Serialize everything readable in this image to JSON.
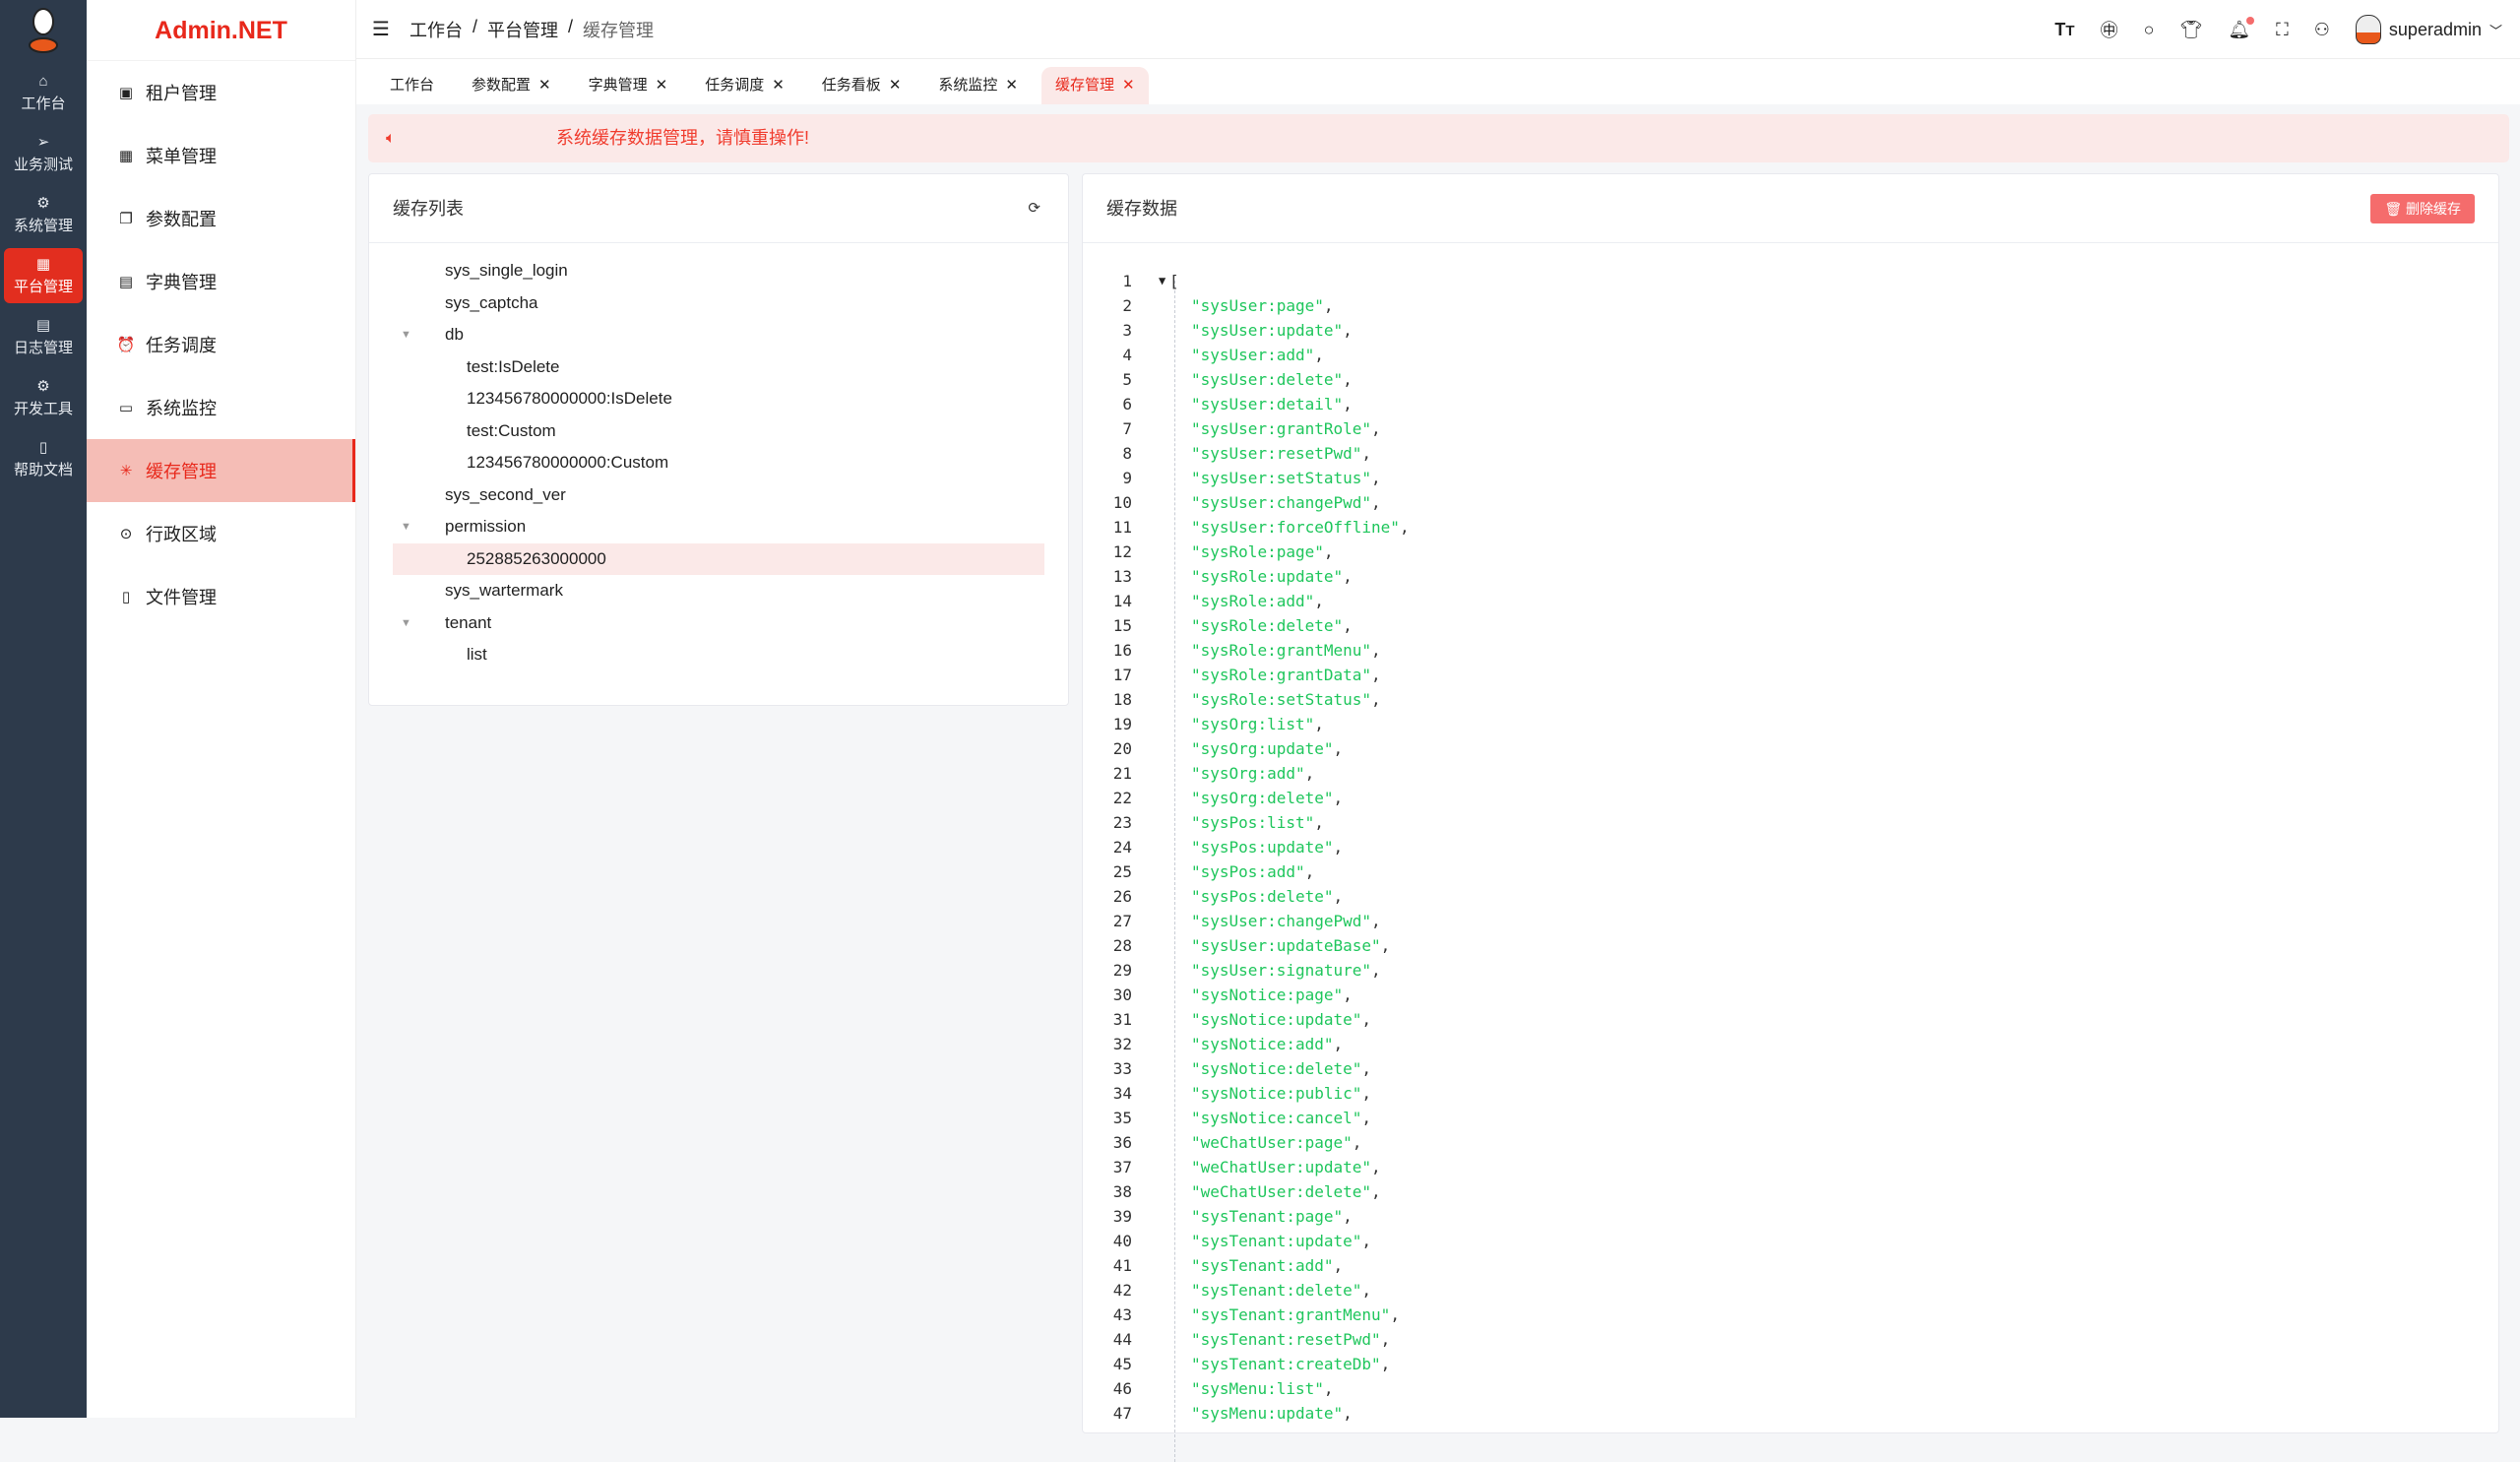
{
  "rail": {
    "items": [
      {
        "label": "工作台",
        "icon": "home-icon",
        "glyph": "⌂"
      },
      {
        "label": "业务测试",
        "icon": "send-icon",
        "glyph": "➢"
      },
      {
        "label": "系统管理",
        "icon": "gear-icon",
        "glyph": "⚙"
      },
      {
        "label": "平台管理",
        "icon": "grid-icon",
        "glyph": "▦",
        "active": true
      },
      {
        "label": "日志管理",
        "icon": "document-icon",
        "glyph": "▤"
      },
      {
        "label": "开发工具",
        "icon": "chip-icon",
        "glyph": "⚙"
      },
      {
        "label": "帮助文档",
        "icon": "book-icon",
        "glyph": "▯"
      }
    ]
  },
  "sidebar": {
    "brand": "Admin.NET",
    "items": [
      {
        "label": "租户管理",
        "icon": "building-icon",
        "glyph": "▣"
      },
      {
        "label": "菜单管理",
        "icon": "grid-icon",
        "glyph": "▦"
      },
      {
        "label": "参数配置",
        "icon": "copy-icon",
        "glyph": "❐"
      },
      {
        "label": "字典管理",
        "icon": "notebook-icon",
        "glyph": "▤"
      },
      {
        "label": "任务调度",
        "icon": "alarm-clock-icon",
        "glyph": "⏰"
      },
      {
        "label": "系统监控",
        "icon": "monitor-icon",
        "glyph": "▭"
      },
      {
        "label": "缓存管理",
        "icon": "loading-icon",
        "glyph": "✳",
        "active": true
      },
      {
        "label": "行政区域",
        "icon": "location-icon",
        "glyph": "⊙"
      },
      {
        "label": "文件管理",
        "icon": "file-icon",
        "glyph": "▯"
      }
    ]
  },
  "header": {
    "breadcrumb": [
      "工作台",
      "平台管理",
      "缓存管理"
    ],
    "username": "superadmin",
    "icons": [
      "font-size-icon",
      "language-icon",
      "search-icon",
      "theme-shirt-icon",
      "bell-icon",
      "fullscreen-icon",
      "user-icon"
    ]
  },
  "tabs": [
    {
      "label": "工作台",
      "closable": false
    },
    {
      "label": "参数配置",
      "closable": true
    },
    {
      "label": "字典管理",
      "closable": true
    },
    {
      "label": "任务调度",
      "closable": true
    },
    {
      "label": "任务看板",
      "closable": true
    },
    {
      "label": "系统监控",
      "closable": true
    },
    {
      "label": "缓存管理",
      "closable": true,
      "active": true
    }
  ],
  "alert": {
    "message": "系统缓存数据管理，请慎重操作!"
  },
  "cache_list": {
    "title": "缓存列表",
    "nodes": [
      {
        "label": "sys_single_login",
        "level": 1
      },
      {
        "label": "sys_captcha",
        "level": 1
      },
      {
        "label": "db",
        "level": 1,
        "expanded": true
      },
      {
        "label": "test:IsDelete",
        "level": 2
      },
      {
        "label": "123456780000000:IsDelete",
        "level": 2
      },
      {
        "label": "test:Custom",
        "level": 2
      },
      {
        "label": "123456780000000:Custom",
        "level": 2
      },
      {
        "label": "sys_second_ver",
        "level": 1
      },
      {
        "label": "permission",
        "level": 1,
        "expanded": true
      },
      {
        "label": "252885263000000",
        "level": 2,
        "selected": true
      },
      {
        "label": "sys_wartermark",
        "level": 1
      },
      {
        "label": "tenant",
        "level": 1,
        "expanded": true
      },
      {
        "label": "list",
        "level": 2
      }
    ]
  },
  "cache_data": {
    "title": "缓存数据",
    "delete_label": "删除缓存",
    "values": [
      "sysUser:page",
      "sysUser:update",
      "sysUser:add",
      "sysUser:delete",
      "sysUser:detail",
      "sysUser:grantRole",
      "sysUser:resetPwd",
      "sysUser:setStatus",
      "sysUser:changePwd",
      "sysUser:forceOffline",
      "sysRole:page",
      "sysRole:update",
      "sysRole:add",
      "sysRole:delete",
      "sysRole:grantMenu",
      "sysRole:grantData",
      "sysRole:setStatus",
      "sysOrg:list",
      "sysOrg:update",
      "sysOrg:add",
      "sysOrg:delete",
      "sysPos:list",
      "sysPos:update",
      "sysPos:add",
      "sysPos:delete",
      "sysUser:changePwd",
      "sysUser:updateBase",
      "sysUser:signature",
      "sysNotice:page",
      "sysNotice:update",
      "sysNotice:add",
      "sysNotice:delete",
      "sysNotice:public",
      "sysNotice:cancel",
      "weChatUser:page",
      "weChatUser:update",
      "weChatUser:delete",
      "sysTenant:page",
      "sysTenant:update",
      "sysTenant:add",
      "sysTenant:delete",
      "sysTenant:grantMenu",
      "sysTenant:resetPwd",
      "sysTenant:createDb",
      "sysMenu:list",
      "sysMenu:update"
    ]
  },
  "colors": {
    "accent": "#e8281b",
    "rail_bg": "#2d3a4b",
    "string": "#1fc65c",
    "danger_button": "#f56c6c",
    "alert_bg": "#fbe9e8"
  }
}
